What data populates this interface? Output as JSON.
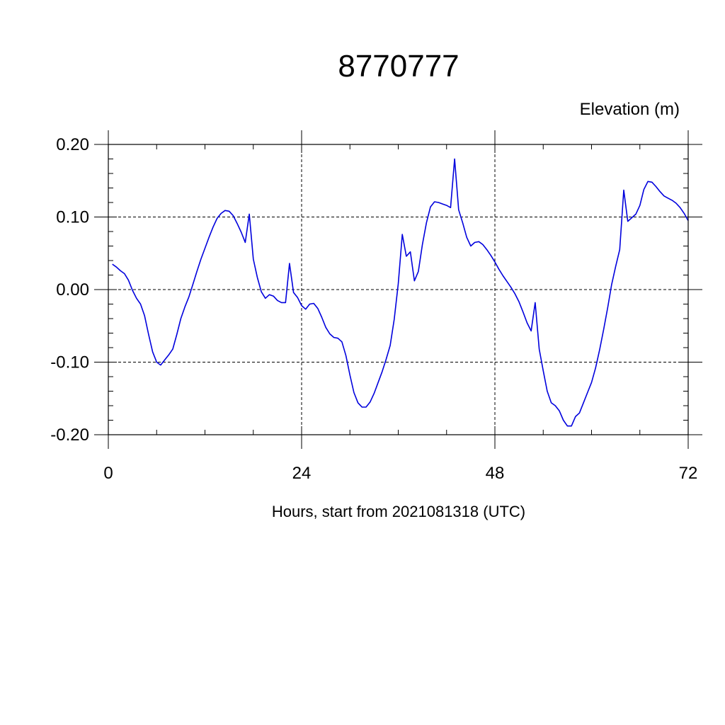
{
  "chart_data": {
    "type": "line",
    "title": "8770777",
    "units_label": "Elevation (m)",
    "xlabel": "Hours, start from 2021081318 (UTC)",
    "ylabel": "",
    "xlim": [
      0,
      72
    ],
    "ylim": [
      -0.2,
      0.2
    ],
    "x_ticks": [
      0,
      24,
      48,
      72
    ],
    "x_tick_labels": [
      "0",
      "24",
      "48",
      "72"
    ],
    "y_ticks": [
      0.2,
      0.1,
      0.0,
      -0.1,
      -0.2
    ],
    "y_tick_labels": [
      "0.20",
      "0.10",
      "0.00",
      "-0.10",
      "-0.20"
    ],
    "grid": true,
    "line_color": "#0000dd",
    "series": [
      {
        "x": [
          0.5,
          1.0,
          1.5,
          2.0,
          2.5,
          3.0,
          3.5,
          4.0,
          4.5,
          5.0,
          5.5,
          6.0,
          6.5,
          7.0,
          7.5,
          8.0,
          8.5,
          9.0,
          9.5,
          10.0,
          10.5,
          11.0,
          11.5,
          12.0,
          12.5,
          13.0,
          13.5,
          14.0,
          14.5,
          15.0,
          15.5,
          16.0,
          16.5,
          17.0,
          17.5,
          18.0,
          18.5,
          19.0,
          19.5,
          20.0,
          20.5,
          21.0,
          21.5,
          22.0,
          22.5,
          23.0,
          23.5,
          24.0,
          24.5,
          25.0,
          25.5,
          26.0,
          26.5,
          27.0,
          27.5,
          28.0,
          28.5,
          29.0,
          29.5,
          30.0,
          30.5,
          31.0,
          31.5,
          32.0,
          32.5,
          33.0,
          33.5,
          34.0,
          34.5,
          35.0,
          35.5,
          36.0,
          36.5,
          37.0,
          37.5,
          38.0,
          38.5,
          39.0,
          39.5,
          40.0,
          40.5,
          41.0,
          41.5,
          42.0,
          42.5,
          43.0,
          43.5,
          44.0,
          44.5,
          45.0,
          45.5,
          46.0,
          46.5,
          47.0,
          47.5,
          48.0,
          48.5,
          49.0,
          49.5,
          50.0,
          50.5,
          51.0,
          51.5,
          52.0,
          52.5,
          53.0,
          53.5,
          54.0,
          54.5,
          55.0,
          55.5,
          56.0,
          56.5,
          57.0,
          57.5,
          58.0,
          58.5,
          59.0,
          59.5,
          60.0,
          60.5,
          61.0,
          61.5,
          62.0,
          62.5,
          63.0,
          63.5,
          64.0,
          64.5,
          65.0,
          65.5,
          66.0,
          66.5,
          67.0,
          67.5,
          68.0,
          68.5,
          69.0,
          69.5,
          70.0,
          70.5,
          71.0,
          71.5,
          72.0
        ],
        "y": [
          0.035,
          0.031,
          0.026,
          0.022,
          0.013,
          -0.001,
          -0.012,
          -0.02,
          -0.036,
          -0.062,
          -0.086,
          -0.1,
          -0.104,
          -0.097,
          -0.09,
          -0.082,
          -0.062,
          -0.04,
          -0.024,
          -0.01,
          0.007,
          0.025,
          0.042,
          0.057,
          0.072,
          0.086,
          0.098,
          0.105,
          0.109,
          0.108,
          0.102,
          0.091,
          0.079,
          0.065,
          0.104,
          0.042,
          0.017,
          -0.003,
          -0.012,
          -0.007,
          -0.009,
          -0.015,
          -0.018,
          -0.018,
          0.036,
          -0.004,
          -0.011,
          -0.022,
          -0.027,
          -0.02,
          -0.019,
          -0.026,
          -0.038,
          -0.052,
          -0.061,
          -0.066,
          -0.067,
          -0.072,
          -0.091,
          -0.118,
          -0.142,
          -0.156,
          -0.162,
          -0.162,
          -0.155,
          -0.143,
          -0.128,
          -0.113,
          -0.096,
          -0.077,
          -0.041,
          0.008,
          0.076,
          0.046,
          0.052,
          0.012,
          0.025,
          0.062,
          0.092,
          0.114,
          0.121,
          0.12,
          0.118,
          0.116,
          0.113,
          0.18,
          0.11,
          0.092,
          0.072,
          0.06,
          0.065,
          0.066,
          0.062,
          0.055,
          0.047,
          0.038,
          0.028,
          0.019,
          0.011,
          0.003,
          -0.006,
          -0.017,
          -0.031,
          -0.046,
          -0.057,
          -0.018,
          -0.082,
          -0.112,
          -0.14,
          -0.156,
          -0.16,
          -0.167,
          -0.18,
          -0.188,
          -0.188,
          -0.175,
          -0.17,
          -0.156,
          -0.142,
          -0.128,
          -0.108,
          -0.083,
          -0.055,
          -0.025,
          0.007,
          0.032,
          0.055,
          0.137,
          0.094,
          0.099,
          0.104,
          0.116,
          0.138,
          0.149,
          0.148,
          0.142,
          0.135,
          0.129,
          0.126,
          0.123,
          0.119,
          0.113,
          0.105,
          0.095
        ]
      }
    ]
  }
}
